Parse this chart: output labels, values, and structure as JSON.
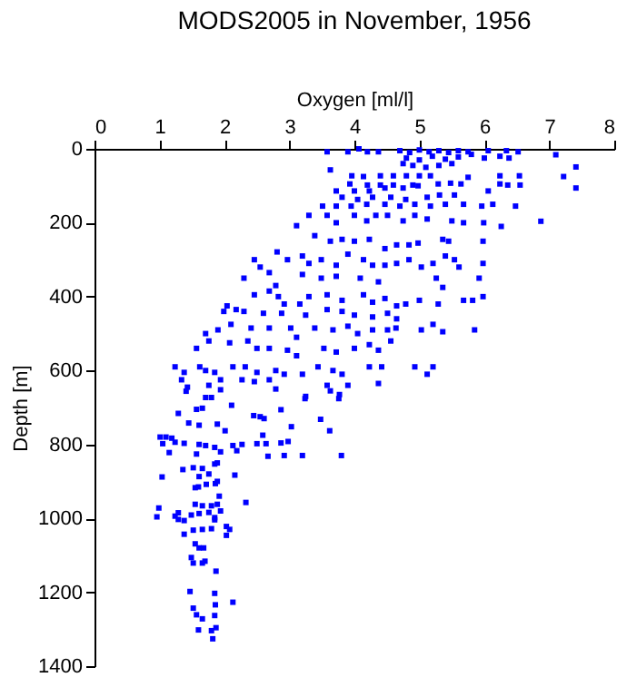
{
  "chart_data": {
    "type": "scatter",
    "title": "MODS2005 in November, 1956",
    "xlabel": "Oxygen [ml/l]",
    "ylabel": "Depth [m]",
    "xlim": [
      0,
      8
    ],
    "xticks": [
      0,
      1,
      2,
      3,
      4,
      5,
      6,
      7,
      8
    ],
    "ylim": [
      1400,
      0
    ],
    "yticks": [
      0,
      200,
      400,
      600,
      800,
      1000,
      1200,
      1400
    ],
    "grid": false,
    "marker": "square",
    "series": [
      {
        "color": "#0000ff",
        "x": [
          3.58,
          3.9,
          4.07,
          4.2,
          4.37,
          4.7,
          4.85,
          5.0,
          5.15,
          5.3,
          5.45,
          5.6,
          5.75,
          4.8,
          5.0,
          5.2,
          5.4,
          5.6,
          5.8,
          4.9,
          5.1,
          5.3,
          5.5,
          4.75,
          6.06,
          6.34,
          6.52,
          7.1,
          6.0,
          6.24,
          6.38,
          7.41,
          7.22,
          7.41,
          3.63,
          3.96,
          4.14,
          4.4,
          4.6,
          4.8,
          5.0,
          5.17,
          5.75,
          6.24,
          6.54,
          3.93,
          4.2,
          4.4,
          4.6,
          4.9,
          5.29,
          5.48,
          5.64,
          6.24,
          6.36,
          6.55,
          3.72,
          4.0,
          4.23,
          4.47,
          4.75,
          4.98,
          6.06,
          3.81,
          4.05,
          4.28,
          4.56,
          4.79,
          5.12,
          5.31,
          5.54,
          3.51,
          3.72,
          3.95,
          4.19,
          4.47,
          4.7,
          4.93,
          5.17,
          5.4,
          5.68,
          5.96,
          6.13,
          6.48,
          3.3,
          3.58,
          3.72,
          4.0,
          4.19,
          4.33,
          4.51,
          4.75,
          4.93,
          5.12,
          5.5,
          5.68,
          5.99,
          6.26,
          6.87,
          3.11,
          3.39,
          3.63,
          3.81,
          4.0,
          4.23,
          4.47,
          4.65,
          4.84,
          4.98,
          5.36,
          5.45,
          5.98,
          2.81,
          2.97,
          3.2,
          3.3,
          3.49,
          3.72,
          3.9,
          4.14,
          4.28,
          4.47,
          4.65,
          4.84,
          5.03,
          5.21,
          5.4,
          5.54,
          5.61,
          5.98,
          2.46,
          2.55,
          2.3,
          2.69,
          2.79,
          3.2,
          3.49,
          3.72,
          4.09,
          4.37,
          5.26,
          5.36,
          5.92,
          2.04,
          2.18,
          2.46,
          2.69,
          2.83,
          2.92,
          3.16,
          3.3,
          3.58,
          3.81,
          4.14,
          4.28,
          4.47,
          4.65,
          4.79,
          5.0,
          5.29,
          5.68,
          5.82,
          5.98,
          1.99,
          2.3,
          2.6,
          2.88,
          3.25,
          3.58,
          3.81,
          4.0,
          4.28,
          4.51,
          4.65,
          1.71,
          1.9,
          2.1,
          2.41,
          2.69,
          3.02,
          3.11,
          3.39,
          3.67,
          3.9,
          4.05,
          4.28,
          4.51,
          4.64,
          5.03,
          5.21,
          5.36,
          5.85,
          1.57,
          1.76,
          2.08,
          2.36,
          2.5,
          2.69,
          2.97,
          3.11,
          3.53,
          3.72,
          4.0,
          4.23,
          4.37,
          4.56,
          1.24,
          1.38,
          1.62,
          1.71,
          1.85,
          2.13,
          2.32,
          2.5,
          2.79,
          2.92,
          3.2,
          3.44,
          3.67,
          3.81,
          4.23,
          4.42,
          4.93,
          5.21,
          5.12,
          1.34,
          1.43,
          1.76,
          1.94,
          2.27,
          2.46,
          2.69,
          2.79,
          3.25,
          3.58,
          3.63,
          3.77,
          3.9,
          4.37,
          1.41,
          1.71,
          1.8,
          1.94,
          1.57,
          1.66,
          1.29,
          2.11,
          2.45,
          2.55,
          2.61,
          2.87,
          3.24,
          3.48,
          3.76,
          1.45,
          1.61,
          1.89,
          2.01,
          2.59,
          3.03,
          3.62,
          1.01,
          1.1,
          1.19,
          1.24,
          1.38,
          1.05,
          1.61,
          1.71,
          1.85,
          2.13,
          2.27,
          2.5,
          2.64,
          2.87,
          2.98,
          1.15,
          1.57,
          1.94,
          2.19,
          2.67,
          2.92,
          3.2,
          3.8,
          1.36,
          1.52,
          1.66,
          1.85,
          1.89,
          1.04,
          1.61,
          1.76,
          1.89,
          2.16,
          1.55,
          1.6,
          1.72,
          1.86,
          1.92,
          2.33,
          1.55,
          1.66,
          1.8,
          1.89,
          0.99,
          0.96,
          1.24,
          1.29,
          1.49,
          1.61,
          1.76,
          1.94,
          1.85,
          1.29,
          1.38,
          1.52,
          1.66,
          1.8,
          2.03,
          2.08,
          1.38,
          1.85,
          2.03,
          1.55,
          1.61,
          1.68,
          1.49,
          1.52,
          1.66,
          1.7,
          1.87,
          1.47,
          1.85,
          2.13,
          1.52,
          1.57,
          1.66,
          1.86,
          1.85,
          1.6,
          1.8,
          1.87,
          1.82
        ],
        "values": [
          8,
          8,
          0,
          8,
          8,
          5,
          10,
          3,
          8,
          5,
          10,
          5,
          8,
          25,
          30,
          20,
          28,
          22,
          15,
          45,
          50,
          45,
          40,
          40,
          5,
          5,
          8,
          16,
          25,
          20,
          25,
          49,
          75,
          106,
          57,
          73,
          75,
          73,
          73,
          73,
          73,
          73,
          77,
          73,
          73,
          95,
          98,
          98,
          98,
          98,
          95,
          93,
          95,
          95,
          98,
          98,
          114,
          114,
          114,
          106,
          106,
          100,
          114,
          131,
          137,
          131,
          131,
          137,
          131,
          125,
          125,
          155,
          155,
          155,
          150,
          150,
          155,
          150,
          155,
          150,
          150,
          155,
          150,
          155,
          180,
          180,
          200,
          180,
          195,
          180,
          180,
          195,
          180,
          190,
          195,
          200,
          200,
          210,
          196,
          208,
          235,
          250,
          245,
          250,
          245,
          270,
          260,
          260,
          255,
          245,
          250,
          250,
          279,
          300,
          290,
          310,
          300,
          315,
          285,
          300,
          315,
          315,
          310,
          300,
          320,
          310,
          290,
          300,
          320,
          310,
          300,
          320,
          350,
          335,
          370,
          340,
          350,
          345,
          350,
          360,
          350,
          375,
          350,
          425,
          435,
          395,
          385,
          400,
          420,
          420,
          400,
          395,
          410,
          395,
          415,
          405,
          425,
          420,
          410,
          420,
          410,
          410,
          400,
          440,
          440,
          445,
          445,
          450,
          435,
          440,
          450,
          455,
          445,
          460,
          500,
          490,
          475,
          485,
          485,
          485,
          510,
          485,
          490,
          480,
          500,
          490,
          490,
          485,
          490,
          475,
          495,
          490,
          540,
          520,
          525,
          520,
          540,
          540,
          545,
          560,
          540,
          550,
          540,
          530,
          545,
          520,
          590,
          605,
          590,
          600,
          605,
          590,
          590,
          605,
          600,
          610,
          610,
          590,
          600,
          610,
          590,
          590,
          590,
          590,
          610,
          625,
          645,
          640,
          625,
          625,
          630,
          625,
          650,
          670,
          640,
          655,
          665,
          640,
          635,
          656,
          673,
          673,
          652,
          705,
          702,
          716,
          694,
          722,
          725,
          730,
          706,
          676,
          732,
          676,
          742,
          748,
          745,
          763,
          775,
          752,
          763,
          780,
          780,
          783,
          794,
          797,
          798,
          800,
          803,
          808,
          803,
          800,
          798,
          798,
          796,
          792,
          822,
          826,
          820,
          817,
          832,
          830,
          830,
          830,
          868,
          863,
          865,
          853,
          850,
          888,
          887,
          880,
          900,
          883,
          917,
          915,
          908,
          906,
          940,
          957,
          962,
          966,
          966,
          962,
          972,
          996,
          994,
          985,
          991,
          987,
          984,
          980,
          998,
          1003,
          1006,
          1032,
          1030,
          1028,
          1022,
          1030,
          1043,
          1004,
          1046,
          1069,
          1080,
          1080,
          1106,
          1121,
          1121,
          1116,
          1143,
          1198,
          1203,
          1227,
          1243,
          1261,
          1272,
          1234,
          1263,
          1302,
          1304,
          1296,
          1326
        ]
      }
    ]
  }
}
